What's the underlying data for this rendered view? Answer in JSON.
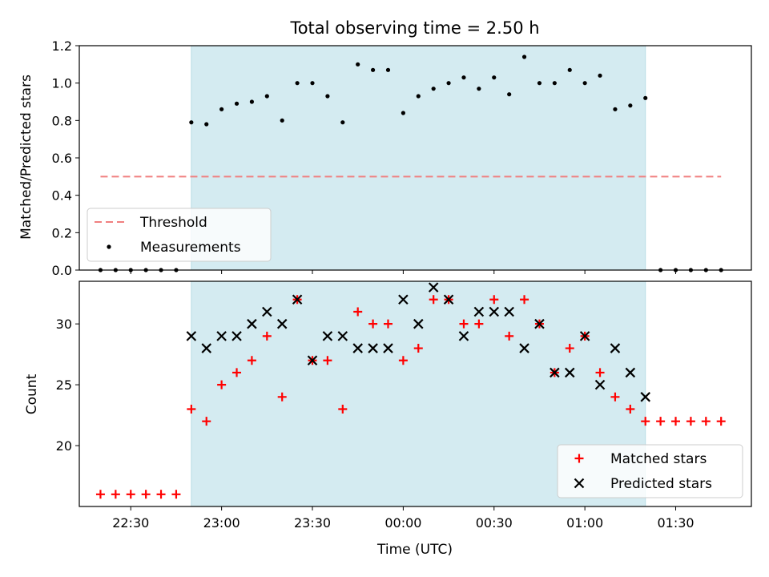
{
  "chart_data": [
    {
      "type": "scatter",
      "title": "Total observing time = 2.50 h",
      "ylabel": "Matched/Predicted stars",
      "ylim": [
        0,
        1.2
      ],
      "yticks": [
        0.0,
        0.2,
        0.4,
        0.6,
        0.8,
        1.0,
        1.2
      ],
      "ytick_labels": [
        "0.0",
        "0.2",
        "0.4",
        "0.6",
        "0.8",
        "1.0",
        "1.2"
      ],
      "grid": false,
      "legend_position": "lower-left",
      "shaded_interval": [
        "22:50",
        "01:20"
      ],
      "threshold": {
        "name": "Threshold",
        "y": 0.5,
        "x": [
          "22:20",
          "01:45"
        ],
        "color": "#f08080",
        "style": "dashed"
      },
      "series": [
        {
          "name": "Measurements",
          "marker": "dot",
          "color": "#000000",
          "x": [
            "22:20",
            "22:25",
            "22:30",
            "22:35",
            "22:40",
            "22:45",
            "22:50",
            "22:55",
            "23:00",
            "23:05",
            "23:10",
            "23:15",
            "23:20",
            "23:25",
            "23:30",
            "23:35",
            "23:40",
            "23:45",
            "23:50",
            "23:55",
            "00:00",
            "00:05",
            "00:10",
            "00:15",
            "00:20",
            "00:25",
            "00:30",
            "00:35",
            "00:40",
            "00:45",
            "00:50",
            "00:55",
            "01:00",
            "01:05",
            "01:10",
            "01:15",
            "01:20",
            "01:25",
            "01:30",
            "01:35",
            "01:40",
            "01:45"
          ],
          "y": [
            0,
            0,
            0,
            0,
            0,
            0,
            0.79,
            0.78,
            0.86,
            0.89,
            0.9,
            0.93,
            0.8,
            1.0,
            1.0,
            0.93,
            0.79,
            1.1,
            1.07,
            1.07,
            0.84,
            0.93,
            0.97,
            1.0,
            1.03,
            0.97,
            1.03,
            0.94,
            1.14,
            1.0,
            1.0,
            1.07,
            1.0,
            1.04,
            0.86,
            0.88,
            0.92,
            0,
            0,
            0,
            0,
            0
          ]
        }
      ]
    },
    {
      "type": "scatter",
      "xlabel": "Time (UTC)",
      "ylabel": "Count",
      "ylim": [
        15,
        33.5
      ],
      "yticks": [
        20,
        25,
        30
      ],
      "ytick_labels": [
        "20",
        "25",
        "30"
      ],
      "xtick_labels": [
        "22:30",
        "23:00",
        "23:30",
        "00:00",
        "00:30",
        "01:00",
        "01:30"
      ],
      "xlim": [
        "22:13",
        "01:55"
      ],
      "grid": false,
      "legend_position": "lower-right",
      "shaded_interval": [
        "22:50",
        "01:20"
      ],
      "series": [
        {
          "name": "Matched stars",
          "marker": "plus",
          "color": "#ff0000",
          "x": [
            "22:20",
            "22:25",
            "22:30",
            "22:35",
            "22:40",
            "22:45",
            "22:50",
            "22:55",
            "23:00",
            "23:05",
            "23:10",
            "23:15",
            "23:20",
            "23:25",
            "23:30",
            "23:35",
            "23:40",
            "23:45",
            "23:50",
            "23:55",
            "00:00",
            "00:05",
            "00:10",
            "00:15",
            "00:20",
            "00:25",
            "00:30",
            "00:35",
            "00:40",
            "00:45",
            "00:50",
            "00:55",
            "01:00",
            "01:05",
            "01:10",
            "01:15",
            "01:20",
            "01:25",
            "01:30",
            "01:35",
            "01:40",
            "01:45"
          ],
          "y": [
            16,
            16,
            16,
            16,
            16,
            16,
            23,
            22,
            25,
            26,
            27,
            29,
            24,
            32,
            27,
            27,
            23,
            31,
            30,
            30,
            27,
            28,
            32,
            32,
            30,
            30,
            32,
            29,
            32,
            30,
            26,
            28,
            29,
            26,
            24,
            23,
            22,
            22,
            22,
            22,
            22,
            22
          ]
        },
        {
          "name": "Predicted stars",
          "marker": "x",
          "color": "#000000",
          "x": [
            "22:50",
            "22:55",
            "23:00",
            "23:05",
            "23:10",
            "23:15",
            "23:20",
            "23:25",
            "23:30",
            "23:35",
            "23:40",
            "23:45",
            "23:50",
            "23:55",
            "00:00",
            "00:05",
            "00:10",
            "00:15",
            "00:20",
            "00:25",
            "00:30",
            "00:35",
            "00:40",
            "00:45",
            "00:50",
            "00:55",
            "01:00",
            "01:05",
            "01:10",
            "01:15",
            "01:20"
          ],
          "y": [
            29,
            28,
            29,
            29,
            30,
            31,
            30,
            32,
            27,
            29,
            29,
            28,
            28,
            28,
            32,
            30,
            33,
            32,
            29,
            31,
            31,
            31,
            28,
            30,
            26,
            26,
            29,
            25,
            28,
            26,
            24
          ]
        }
      ]
    }
  ],
  "colors": {
    "shade": "#d4ebf1",
    "shade_edge": "#b9dde6"
  }
}
